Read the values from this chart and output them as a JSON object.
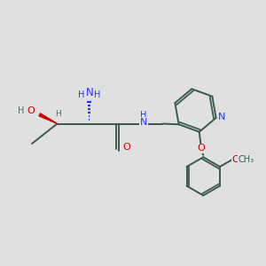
{
  "background_color": "#e0e0e0",
  "bond_color": "#3a5a4a",
  "N_color": "#1a3aff",
  "O_color": "#cc0000",
  "H_color": "#4a6a5a",
  "figsize": [
    3.0,
    3.0
  ],
  "dpi": 100,
  "xlim": [
    0,
    10
  ],
  "ylim": [
    0,
    10
  ]
}
